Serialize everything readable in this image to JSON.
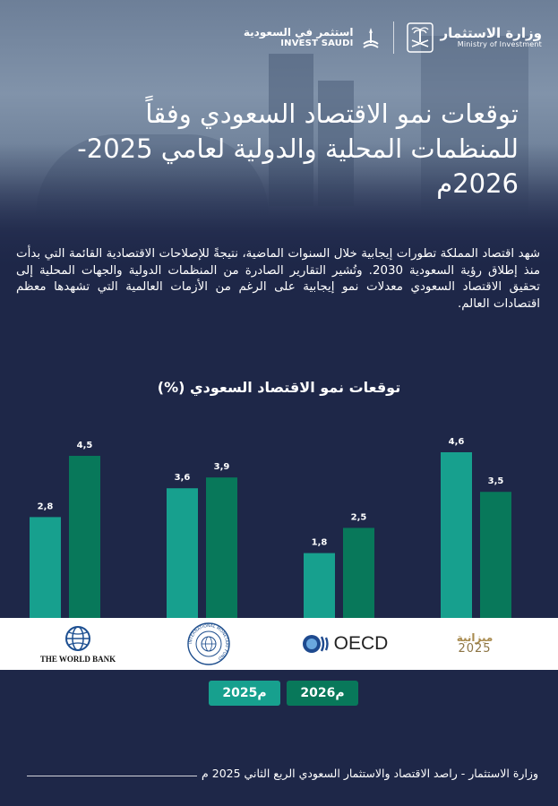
{
  "header": {
    "ministry_ar": "وزارة الاستثمار",
    "ministry_en": "Ministry of Investment",
    "invest_ar": "استثمر في السعودية",
    "invest_en": "INVEST SAUDI"
  },
  "title": "توقعات نمو الاقتصاد السعودي وفقاً للمنظمات المحلية والدولية لعامي 2025-2026م",
  "intro": "شهد اقتصاد المملكة تطورات إيجابية خلال السنوات الماضية، نتيجةً للإصلاحات الاقتصادية القائمة التي بدأت منذ إطلاق رؤية السعودية 2030. وتُشير التقارير الصادرة من المنظمات الدولية والجهات المحلية إلى تحقيق الاقتصاد السعودي معدلات نمو إيجابية على الرغم من الأزمات العالمية التي تشهدها معظم اقتصادات العالم.",
  "organizations": {
    "world_bank": "THE WORLD BANK",
    "imf_ring": "INTERNATIONAL MONETARY FUND",
    "oecd": "OECD",
    "budget_ar": "ميزانية",
    "budget_year": "2025"
  },
  "chart_data": {
    "type": "bar",
    "title": "توقعات نمو الاقتصاد السعودي (%)",
    "categories": [
      "THE WORLD BANK",
      "IMF",
      "OECD",
      "ميزانية 2025"
    ],
    "series": [
      {
        "name": "2025م",
        "values": [
          2.8,
          3.6,
          1.8,
          4.6
        ],
        "color": "#17a08e"
      },
      {
        "name": "2026م",
        "values": [
          4.5,
          3.9,
          2.5,
          3.5
        ],
        "color": "#08785a"
      }
    ],
    "ylim": [
      0,
      4.9
    ],
    "grid": false,
    "legend_position": "bottom"
  },
  "footer": "وزارة الاستثمار - راصد الاقتصاد والاستثمار السعودي الربع الثاني 2025 م"
}
